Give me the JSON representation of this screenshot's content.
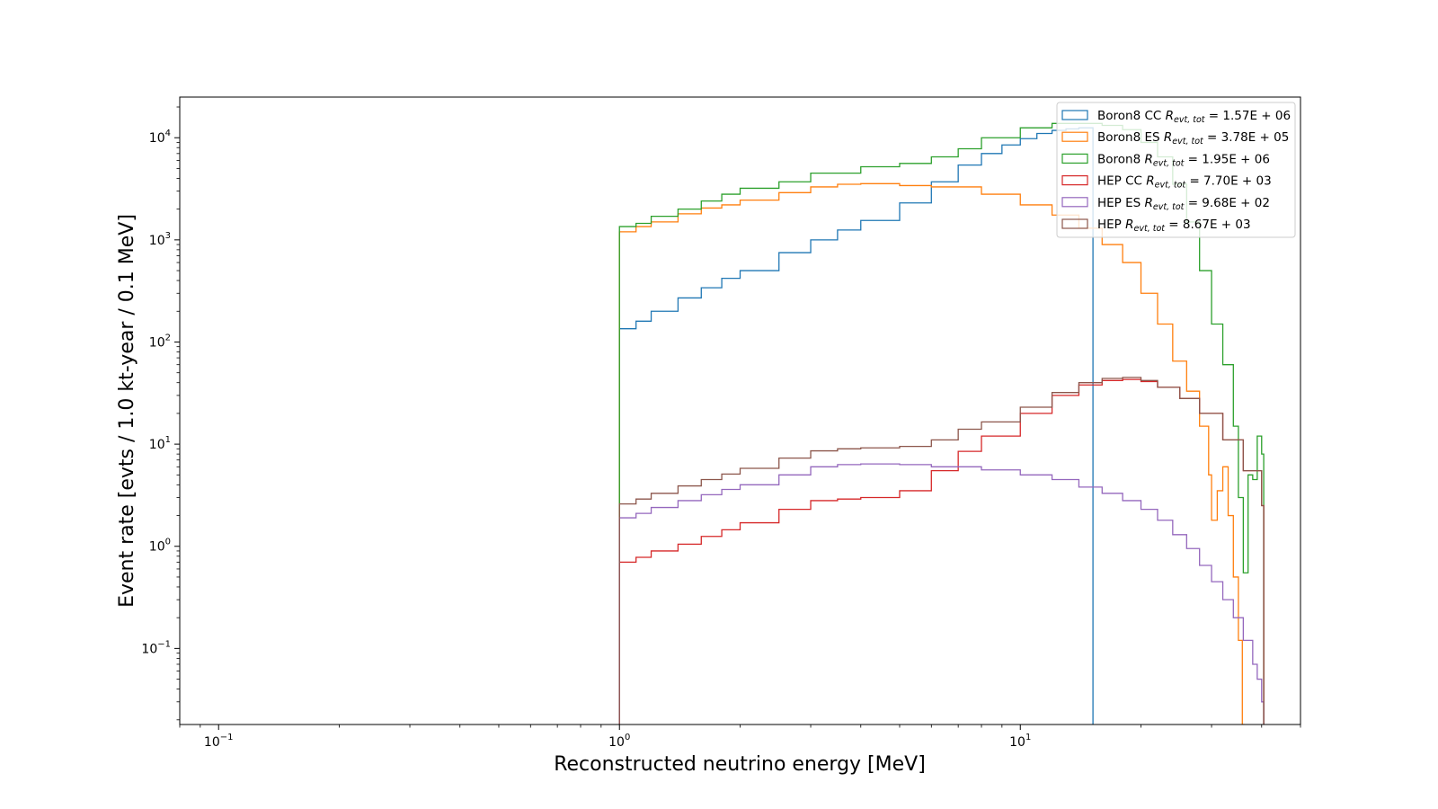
{
  "chart_data": {
    "type": "line",
    "style": "step histogram",
    "xlabel": "Reconstructed neutrino energy [MeV]",
    "ylabel": "Event rate [evts / 1.0 kt-year / 0.1 MeV]",
    "xscale": "log",
    "yscale": "log",
    "xlim": [
      0.08,
      50
    ],
    "ylim": [
      0.018,
      25000
    ],
    "grid": false,
    "legend_position": "top-right",
    "x_major_ticks": [
      {
        "value": 0.1,
        "base": "10",
        "exp": "−1"
      },
      {
        "value": 1,
        "base": "10",
        "exp": "0"
      },
      {
        "value": 10,
        "base": "10",
        "exp": "1"
      }
    ],
    "y_major_ticks": [
      {
        "value": 0.1,
        "base": "10",
        "exp": "−1"
      },
      {
        "value": 1,
        "base": "10",
        "exp": "0"
      },
      {
        "value": 10,
        "base": "10",
        "exp": "1"
      },
      {
        "value": 100,
        "base": "10",
        "exp": "2"
      },
      {
        "value": 1000,
        "base": "10",
        "exp": "3"
      },
      {
        "value": 10000,
        "base": "10",
        "exp": "4"
      }
    ],
    "series": [
      {
        "name": "Boron8 CC",
        "r_symbol": "R",
        "r_sub": "evt, tot",
        "r_value": "= 1.57E + 06",
        "color": "#1f77b4",
        "x": [
          1.0,
          1.1,
          1.2,
          1.4,
          1.6,
          1.8,
          2.0,
          2.5,
          3.0,
          3.5,
          4.0,
          5.0,
          6.0,
          7.0,
          8.0,
          9.0,
          10.0,
          11.0,
          12.0,
          13.0,
          14.0,
          15.0
        ],
        "y": [
          135,
          160,
          200,
          270,
          340,
          420,
          500,
          750,
          1000,
          1250,
          1550,
          2300,
          3700,
          5400,
          7000,
          8500,
          9800,
          11000,
          11800,
          12200,
          12500,
          12500
        ]
      },
      {
        "name": "Boron8 ES",
        "r_symbol": "R",
        "r_sub": "evt, tot",
        "r_value": "= 3.78E + 05",
        "color": "#ff7f0e",
        "x": [
          1.0,
          1.1,
          1.2,
          1.4,
          1.6,
          1.8,
          2.0,
          2.5,
          3.0,
          3.5,
          4.0,
          5.0,
          6.0,
          8.0,
          10.0,
          12.0,
          14.0,
          16.0,
          18.0,
          20.0,
          22.0,
          24.0,
          26.0,
          28.0,
          29.5,
          30.0,
          31.0,
          32.0,
          33.0,
          34.0,
          35.0,
          35.8
        ],
        "y": [
          1200,
          1350,
          1500,
          1800,
          2050,
          2200,
          2450,
          2900,
          3300,
          3500,
          3550,
          3400,
          3300,
          2800,
          2200,
          1750,
          1300,
          900,
          600,
          300,
          150,
          65,
          33,
          15,
          5,
          1.8,
          3.5,
          6,
          2,
          0.5,
          0.12,
          0.018
        ]
      },
      {
        "name": "Boron8",
        "r_symbol": "R",
        "r_sub": "evt, tot",
        "r_value": "= 1.95E + 06",
        "color": "#2ca02c",
        "x": [
          1.0,
          1.1,
          1.2,
          1.4,
          1.6,
          1.8,
          2.0,
          2.5,
          3.0,
          4.0,
          5.0,
          6.0,
          7.0,
          8.0,
          10.0,
          12.0,
          14.0,
          16.0,
          18.0,
          20.0,
          22.0,
          24.0,
          26.0,
          28.0,
          30.0,
          32.0,
          34.0,
          35.0,
          36.0,
          37.0,
          38.0,
          39.0,
          40.0
        ],
        "y": [
          1350,
          1450,
          1700,
          2000,
          2400,
          2800,
          3200,
          3700,
          4500,
          5200,
          5600,
          6500,
          7800,
          10000,
          12500,
          13800,
          13800,
          13200,
          12000,
          9000,
          6500,
          3500,
          1500,
          500,
          150,
          60,
          15,
          3,
          0.55,
          5,
          4.5,
          12,
          8
        ]
      },
      {
        "name": "HEP CC",
        "r_symbol": "R",
        "r_sub": "evt, tot",
        "r_value": "= 7.70E + 03",
        "color": "#d62728",
        "x": [
          1.0,
          1.1,
          1.2,
          1.4,
          1.6,
          1.8,
          2.0,
          2.5,
          3.0,
          3.5,
          4.0,
          5.0,
          6.0,
          7.0,
          8.0,
          10.0,
          12.0,
          14.0,
          16.0,
          18.0,
          20.0,
          22.0,
          25.0,
          28.0,
          32.0,
          36.0,
          40.0
        ],
        "y": [
          0.7,
          0.78,
          0.9,
          1.05,
          1.25,
          1.45,
          1.7,
          2.3,
          2.8,
          2.9,
          3.0,
          3.5,
          5.5,
          8.5,
          12.0,
          20.0,
          30.0,
          38.0,
          42.0,
          43.0,
          41.0,
          36.0,
          28.0,
          20.0,
          11.0,
          5.5,
          2.5
        ]
      },
      {
        "name": "HEP ES",
        "r_symbol": "R",
        "r_sub": "evt, tot",
        "r_value": "= 9.68E + 02",
        "color": "#9467bd",
        "x": [
          1.0,
          1.1,
          1.2,
          1.4,
          1.6,
          1.8,
          2.0,
          2.5,
          3.0,
          3.5,
          4.0,
          5.0,
          6.0,
          8.0,
          10.0,
          12.0,
          14.0,
          16.0,
          18.0,
          20.0,
          22.0,
          24.0,
          26.0,
          28.0,
          30.0,
          32.0,
          34.0,
          36.0,
          38.0,
          39.0,
          40.0
        ],
        "y": [
          1.9,
          2.1,
          2.4,
          2.8,
          3.2,
          3.6,
          4.0,
          5.0,
          6.0,
          6.3,
          6.4,
          6.3,
          6.0,
          5.6,
          5.0,
          4.5,
          3.8,
          3.3,
          2.8,
          2.3,
          1.8,
          1.3,
          0.95,
          0.65,
          0.45,
          0.3,
          0.2,
          0.12,
          0.07,
          0.05,
          0.03
        ]
      },
      {
        "name": "HEP",
        "r_symbol": "R",
        "r_sub": "evt, tot",
        "r_value": "= 8.67E + 03",
        "color": "#8c564b",
        "x": [
          1.0,
          1.1,
          1.2,
          1.4,
          1.6,
          1.8,
          2.0,
          2.5,
          3.0,
          3.5,
          4.0,
          5.0,
          6.0,
          7.0,
          8.0,
          10.0,
          12.0,
          14.0,
          16.0,
          18.0,
          20.0,
          22.0,
          25.0,
          28.0,
          32.0,
          36.0,
          40.0
        ],
        "y": [
          2.6,
          2.9,
          3.3,
          3.9,
          4.5,
          5.1,
          5.8,
          7.3,
          8.6,
          9.0,
          9.2,
          9.5,
          11.0,
          14.0,
          16.5,
          23.0,
          32.0,
          40.0,
          44.0,
          45.0,
          42.0,
          36.0,
          28.0,
          20.0,
          11.0,
          5.5,
          2.5
        ]
      }
    ]
  }
}
